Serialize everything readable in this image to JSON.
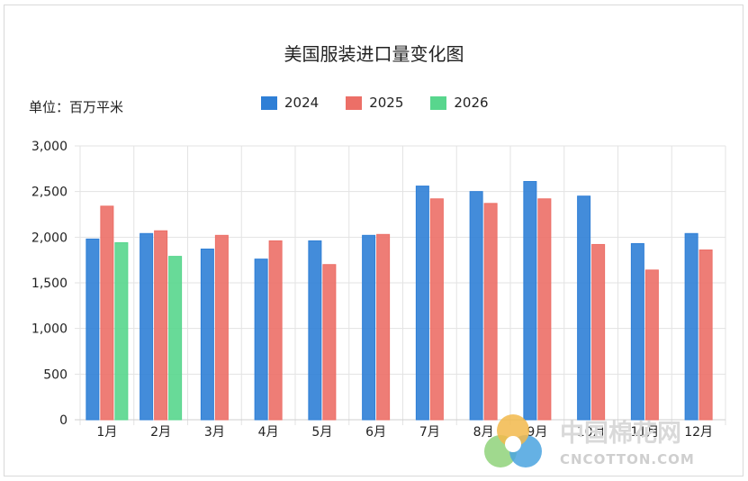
{
  "chart_data": {
    "type": "bar",
    "title": "美国服装进口量变化图",
    "unit_label": "单位：百万平米",
    "categories": [
      "1月",
      "2月",
      "3月",
      "4月",
      "5月",
      "6月",
      "7月",
      "8月",
      "9月",
      "10月",
      "11月",
      "12月"
    ],
    "series": [
      {
        "name": "2024",
        "color": "#2f7fd6",
        "values": [
          1980,
          2040,
          1870,
          1760,
          1960,
          2020,
          2560,
          2500,
          2610,
          2450,
          1930,
          2040
        ]
      },
      {
        "name": "2025",
        "color": "#ec6f67",
        "values": [
          2340,
          2070,
          2020,
          1960,
          1700,
          2030,
          2420,
          2370,
          2420,
          1920,
          1640,
          1860
        ]
      },
      {
        "name": "2026",
        "color": "#58d68d",
        "values": [
          1940,
          1790,
          null,
          null,
          null,
          null,
          null,
          null,
          null,
          null,
          null,
          null
        ]
      }
    ],
    "yticks": [
      "0",
      "500",
      "1,000",
      "1,500",
      "2,000",
      "2,500",
      "3,000"
    ],
    "ylim": [
      0,
      3000
    ],
    "grid": true,
    "legend_position": "top-center"
  },
  "watermark": {
    "cn": "中国棉花网",
    "en": "CNCOTTON.COM"
  }
}
